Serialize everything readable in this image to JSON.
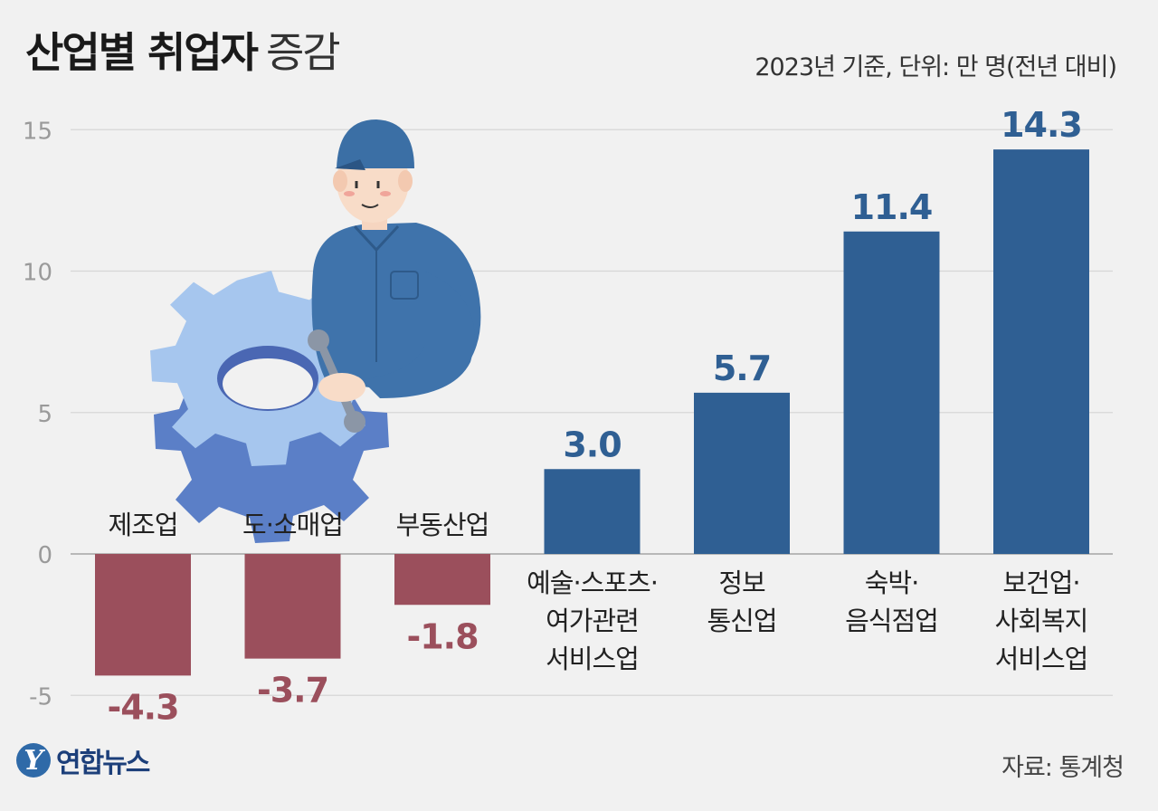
{
  "header": {
    "title_bold": "산업별 취업자",
    "title_light": "증감",
    "subtitle": "2023년 기준, 단위: 만 명(전년 대비)"
  },
  "footer": {
    "source": "자료: 통계청",
    "logo_text": "연합뉴스",
    "logo_mark": "Y"
  },
  "colors": {
    "positive": "#2f5f93",
    "negative": "#9b4f5c",
    "grid": "#d6d6d6",
    "tick": "#9a9a9a"
  },
  "chart_data": {
    "type": "bar",
    "categories": [
      [
        "제조업"
      ],
      [
        "도·소매업"
      ],
      [
        "부동산업"
      ],
      [
        "예술·스포츠·",
        "여가관련",
        "서비스업"
      ],
      [
        "정보",
        "통신업"
      ],
      [
        "숙박·",
        "음식점업"
      ],
      [
        "보건업·",
        "사회복지",
        "서비스업"
      ]
    ],
    "values": [
      -4.3,
      -3.7,
      -1.8,
      3.0,
      5.7,
      11.4,
      14.3
    ],
    "value_labels": [
      "-4.3",
      "-3.7",
      "-1.8",
      "3.0",
      "5.7",
      "11.4",
      "14.3"
    ],
    "yticks": [
      15,
      10,
      5,
      0,
      -5
    ],
    "ylim": [
      -5.4,
      15.5
    ],
    "grid": true
  }
}
